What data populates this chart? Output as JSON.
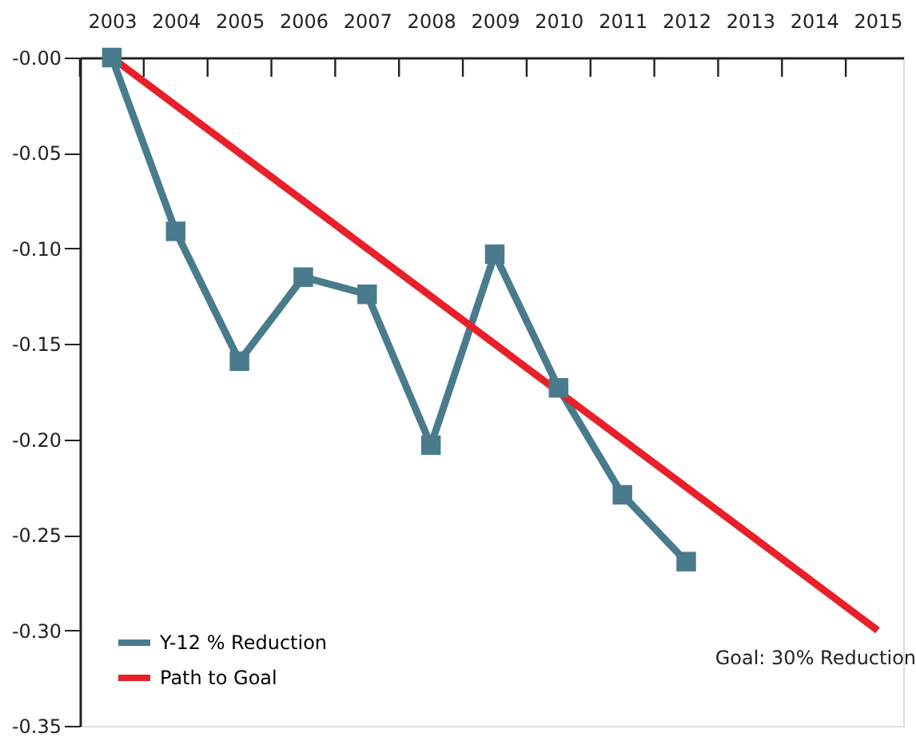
{
  "chart_data": {
    "type": "line",
    "x": [
      2003,
      2004,
      2005,
      2006,
      2007,
      2008,
      2009,
      2010,
      2011,
      2012
    ],
    "series": [
      {
        "name": "Y-12 % Reduction",
        "color": "#4a7b8c",
        "marker": "square",
        "values": [
          0,
          -0.091,
          -0.159,
          -0.115,
          -0.124,
          -0.203,
          -0.103,
          -0.173,
          -0.229,
          -0.264
        ]
      },
      {
        "name": "Path to Goal",
        "color": "#e8202a",
        "marker": "none",
        "x": [
          2003,
          2015
        ],
        "values": [
          0,
          -0.3
        ]
      }
    ],
    "xlim": [
      2002.5,
      2015.4
    ],
    "xticks": [
      {
        "value": 2002.5,
        "label": null
      },
      2003,
      {
        "value": 2003.5,
        "label": null
      },
      2004,
      {
        "value": 2004.5,
        "label": null
      },
      2005,
      {
        "value": 2005.5,
        "label": null
      },
      2006,
      {
        "value": 2006.5,
        "label": null
      },
      2007,
      {
        "value": 2007.5,
        "label": null
      },
      2008,
      {
        "value": 2008.5,
        "label": null
      },
      2009,
      {
        "value": 2009.5,
        "label": null
      },
      2010,
      {
        "value": 2010.5,
        "label": null
      },
      2011,
      {
        "value": 2011.5,
        "label": null
      },
      2012,
      {
        "value": 2012.5,
        "label": null
      },
      2013,
      {
        "value": 2013.5,
        "label": null
      },
      2014,
      {
        "value": 2014.5,
        "label": null
      },
      2015
    ],
    "ylim": [
      -0.35,
      0
    ],
    "yticks": [
      {
        "value": -0.35,
        "label": "-0.35"
      },
      {
        "value": -0.3,
        "label": "-0.30"
      },
      {
        "value": -0.25,
        "label": "-0.25"
      },
      {
        "value": -0.2,
        "label": "-0.20"
      },
      {
        "value": -0.15,
        "label": "-0.15"
      },
      {
        "value": -0.1,
        "label": "-0.10"
      },
      {
        "value": -0.05,
        "label": "-0.05"
      },
      {
        "value": 0,
        "label": "-0.00"
      }
    ],
    "annotations": [
      {
        "text": "Goal: 30% Reduction",
        "x": 2015,
        "y": -0.3
      }
    ],
    "legend": "bottom left",
    "grid": false,
    "line_style": "solid"
  }
}
